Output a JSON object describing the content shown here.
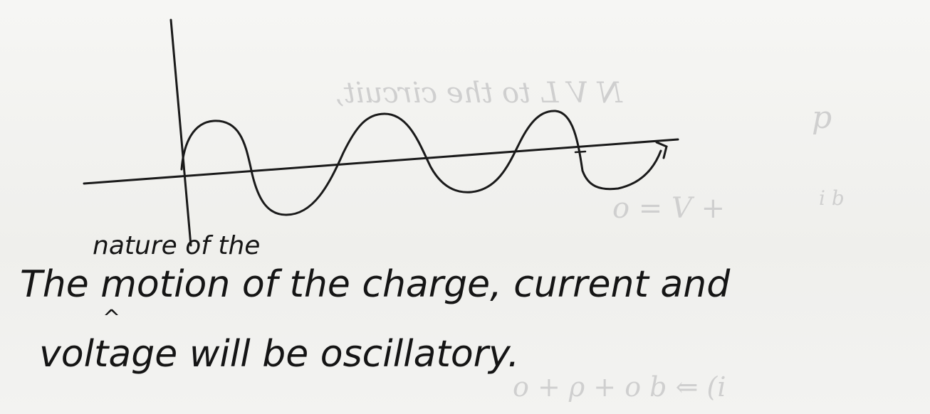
{
  "note": {
    "insert_above": "nature of the",
    "line1": "The motion of the charge, current and",
    "insert_caret": "^",
    "line2": "voltage will be oscillatory."
  },
  "bleed_through": {
    "mirrored_text": "N V L to the circuit,",
    "fragment_right": "p",
    "formula_mid": "o = V +",
    "formula_frac": "i b",
    "formula_bottom": "o + ρ + o b ⇐ (i"
  },
  "colors": {
    "ink": "#151515",
    "paper": "#f2f2f0",
    "bleed": "#cfcfcf"
  }
}
